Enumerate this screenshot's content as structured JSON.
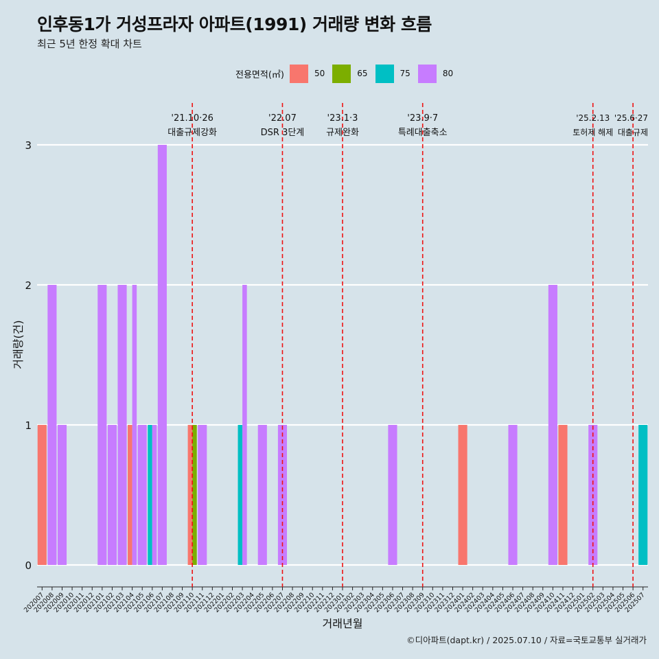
{
  "header": {
    "title": "인후동1가 거성프라자 아파트(1991) 거래량 변화 흐름",
    "subtitle": "최근 5년 한정 확대 차트"
  },
  "legend": {
    "title": "전용면적(㎡)",
    "items": [
      {
        "label": "50",
        "color": "#F8766D"
      },
      {
        "label": "65",
        "color": "#7CAE00"
      },
      {
        "label": "75",
        "color": "#00BFC4"
      },
      {
        "label": "80",
        "color": "#C77CFF"
      }
    ]
  },
  "caption": "©디아파트(dapt.kr) / 2025.07.10 / 자료=국토교통부 실거래가",
  "chart_data": {
    "type": "bar",
    "stacking": "dodge",
    "xlabel": "거래년월",
    "ylabel": "거래량(건)",
    "ylim": [
      0,
      3
    ],
    "y_ticks": [
      0,
      1,
      2,
      3
    ],
    "categories": [
      "202007",
      "202008",
      "202009",
      "202010",
      "202011",
      "202012",
      "202101",
      "202102",
      "202103",
      "202104",
      "202105",
      "202106",
      "202107",
      "202108",
      "202109",
      "202110",
      "202111",
      "202112",
      "202201",
      "202202",
      "202203",
      "202204",
      "202205",
      "202206",
      "202207",
      "202208",
      "202209",
      "202210",
      "202211",
      "202212",
      "202301",
      "202302",
      "202303",
      "202304",
      "202305",
      "202306",
      "202307",
      "202308",
      "202309",
      "202310",
      "202311",
      "202312",
      "202401",
      "202402",
      "202403",
      "202404",
      "202405",
      "202406",
      "202407",
      "202408",
      "202409",
      "202410",
      "202411",
      "202412",
      "202501",
      "202502",
      "202503",
      "202504",
      "202505",
      "202506",
      "202507"
    ],
    "series": [
      {
        "name": "50",
        "color": "#F8766D",
        "values": [
          1,
          0,
          0,
          0,
          0,
          0,
          0,
          0,
          0,
          1,
          0,
          0,
          0,
          0,
          0,
          1,
          0,
          0,
          0,
          0,
          0,
          0,
          0,
          0,
          0,
          0,
          0,
          0,
          0,
          0,
          0,
          0,
          0,
          0,
          0,
          0,
          0,
          0,
          0,
          0,
          0,
          0,
          1,
          0,
          0,
          0,
          0,
          0,
          0,
          0,
          0,
          0,
          1,
          0,
          0,
          0,
          0,
          0,
          0,
          0,
          0
        ]
      },
      {
        "name": "65",
        "color": "#7CAE00",
        "values": [
          0,
          0,
          0,
          0,
          0,
          0,
          0,
          0,
          0,
          0,
          0,
          0,
          0,
          0,
          0,
          1,
          0,
          0,
          0,
          0,
          0,
          0,
          0,
          0,
          0,
          0,
          0,
          0,
          0,
          0,
          0,
          0,
          0,
          0,
          0,
          0,
          0,
          0,
          0,
          0,
          0,
          0,
          0,
          0,
          0,
          0,
          0,
          0,
          0,
          0,
          0,
          0,
          0,
          0,
          0,
          0,
          0,
          0,
          0,
          0,
          0
        ]
      },
      {
        "name": "75",
        "color": "#00BFC4",
        "values": [
          0,
          0,
          0,
          0,
          0,
          0,
          0,
          0,
          0,
          0,
          0,
          1,
          0,
          0,
          0,
          0,
          0,
          0,
          0,
          0,
          1,
          0,
          0,
          0,
          0,
          0,
          0,
          0,
          0,
          0,
          0,
          0,
          0,
          0,
          0,
          0,
          0,
          0,
          0,
          0,
          0,
          0,
          0,
          0,
          0,
          0,
          0,
          0,
          0,
          0,
          0,
          0,
          0,
          0,
          0,
          0,
          0,
          0,
          0,
          0,
          1
        ]
      },
      {
        "name": "80",
        "color": "#C77CFF",
        "values": [
          0,
          2,
          1,
          0,
          0,
          0,
          2,
          1,
          2,
          2,
          1,
          1,
          3,
          0,
          0,
          0,
          1,
          0,
          0,
          0,
          2,
          0,
          1,
          0,
          1,
          0,
          0,
          0,
          0,
          0,
          0,
          0,
          0,
          0,
          0,
          1,
          0,
          0,
          0,
          0,
          0,
          0,
          0,
          0,
          0,
          0,
          0,
          1,
          0,
          0,
          0,
          2,
          0,
          0,
          0,
          1,
          0,
          0,
          0,
          0,
          0
        ]
      }
    ],
    "annotations": [
      {
        "category": "202110",
        "date": "'21.10·26",
        "label": "대출규제강화"
      },
      {
        "category": "202207",
        "date": "'22.07",
        "label": "DSR 3단계"
      },
      {
        "category": "202301",
        "date": "'23.1·3",
        "label": "규제완화"
      },
      {
        "category": "202309",
        "date": "'23.9·7",
        "label": "특례대출축소"
      },
      {
        "category": "202502",
        "date": "'25.2.13",
        "label": "토허제 해제"
      },
      {
        "category": "202506",
        "date": "'25.6·27",
        "label": "대출규제"
      }
    ]
  }
}
